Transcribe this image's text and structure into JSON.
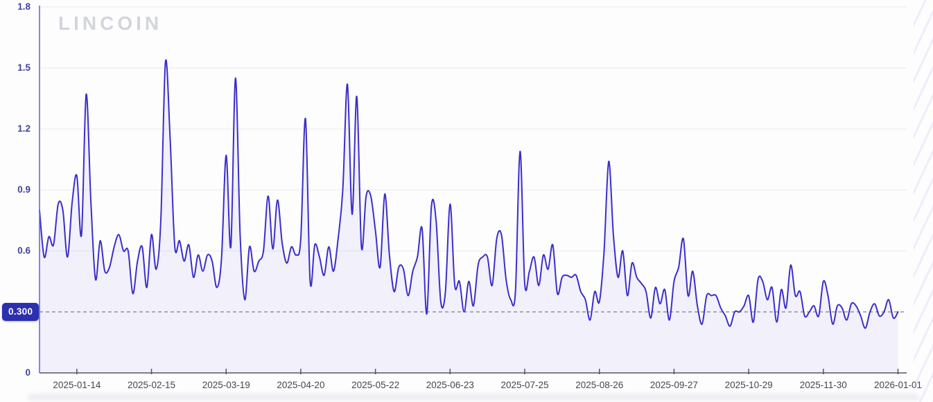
{
  "watermark": "LINCOIN",
  "colors": {
    "line": "#3b2ec8",
    "area_fill": "rgba(82,72,210,0.07)",
    "y_axis": "#6f63e0",
    "x_axis": "#55555e",
    "gridline": "#ededf3",
    "threshold_line": "#7c7c88",
    "badge_background": "#2b2fb0",
    "badge_text": "#ffffff",
    "y_label": "#3f4399",
    "x_label": "#45454d"
  },
  "chart_data": {
    "type": "line",
    "title": "",
    "xlabel": "",
    "ylabel": "",
    "ylim": [
      0,
      1.8
    ],
    "grid": "faint-horizontal",
    "legend": "none",
    "x_start_date": "2024-12-29",
    "x_step_days": 2,
    "values": [
      0.8,
      0.57,
      0.67,
      0.63,
      0.83,
      0.8,
      0.57,
      0.84,
      0.97,
      0.68,
      1.37,
      0.85,
      0.46,
      0.65,
      0.5,
      0.52,
      0.62,
      0.68,
      0.6,
      0.6,
      0.39,
      0.55,
      0.62,
      0.42,
      0.68,
      0.51,
      0.75,
      1.53,
      1.15,
      0.62,
      0.65,
      0.55,
      0.63,
      0.47,
      0.58,
      0.5,
      0.58,
      0.55,
      0.42,
      0.56,
      1.07,
      0.62,
      1.45,
      0.68,
      0.36,
      0.62,
      0.5,
      0.55,
      0.6,
      0.87,
      0.61,
      0.85,
      0.64,
      0.54,
      0.62,
      0.58,
      0.66,
      1.25,
      0.45,
      0.63,
      0.57,
      0.48,
      0.62,
      0.5,
      0.66,
      0.9,
      1.42,
      0.78,
      1.36,
      0.62,
      0.87,
      0.87,
      0.7,
      0.52,
      0.88,
      0.58,
      0.4,
      0.52,
      0.51,
      0.38,
      0.5,
      0.57,
      0.71,
      0.29,
      0.82,
      0.75,
      0.35,
      0.4,
      0.83,
      0.43,
      0.45,
      0.3,
      0.45,
      0.33,
      0.53,
      0.57,
      0.57,
      0.43,
      0.66,
      0.68,
      0.46,
      0.36,
      0.4,
      1.09,
      0.44,
      0.5,
      0.57,
      0.43,
      0.58,
      0.51,
      0.63,
      0.39,
      0.47,
      0.48,
      0.47,
      0.48,
      0.4,
      0.36,
      0.26,
      0.4,
      0.35,
      0.6,
      1.04,
      0.68,
      0.47,
      0.6,
      0.38,
      0.54,
      0.47,
      0.44,
      0.4,
      0.27,
      0.42,
      0.34,
      0.41,
      0.26,
      0.45,
      0.52,
      0.66,
      0.38,
      0.5,
      0.33,
      0.24,
      0.38,
      0.38,
      0.38,
      0.32,
      0.28,
      0.23,
      0.3,
      0.3,
      0.33,
      0.38,
      0.25,
      0.46,
      0.45,
      0.36,
      0.42,
      0.25,
      0.41,
      0.32,
      0.53,
      0.38,
      0.4,
      0.28,
      0.3,
      0.33,
      0.28,
      0.45,
      0.38,
      0.24,
      0.33,
      0.32,
      0.26,
      0.34,
      0.33,
      0.28,
      0.22,
      0.3,
      0.34,
      0.28,
      0.3,
      0.36,
      0.27,
      0.3
    ],
    "x_tick_labels": [
      "2025-01-14",
      "2025-02-15",
      "2025-03-19",
      "2025-04-20",
      "2025-05-22",
      "2025-06-23",
      "2025-07-25",
      "2025-08-26",
      "2025-09-27",
      "2025-10-29",
      "2025-11-30",
      "2026-01-01"
    ],
    "y_ticks": [
      {
        "label": "0",
        "value": 0
      },
      {
        "label": "0.6",
        "value": 0.6
      },
      {
        "label": "0.9",
        "value": 0.9
      },
      {
        "label": "1.2",
        "value": 1.2
      },
      {
        "label": "1.5",
        "value": 1.5
      },
      {
        "label": "1.8",
        "value": 1.8
      }
    ],
    "threshold": {
      "label": "0.300",
      "value": 0.3,
      "style": "dashed"
    }
  }
}
